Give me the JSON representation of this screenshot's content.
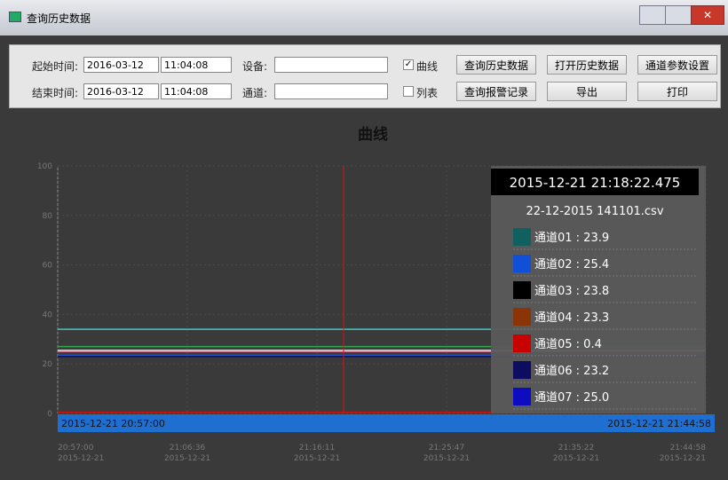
{
  "window": {
    "title": "查询历史数据"
  },
  "toolbar": {
    "start_label": "起始时间:",
    "start_date": "2016-03-12",
    "start_time": "11:04:08",
    "end_label": "结束时间:",
    "end_date": "2016-03-12",
    "end_time": "11:04:08",
    "device_label": "设备:",
    "channel_label": "通道:",
    "curve_label": "曲线",
    "curve_checked": true,
    "list_label": "列表",
    "list_checked": false,
    "buttons": [
      "查询历史数据",
      "打开历史数据",
      "通道参数设置",
      "查询报警记录",
      "导出",
      "打印"
    ]
  },
  "plot": {
    "title": "曲线",
    "ylim": [
      0,
      100
    ],
    "yticks": [
      0,
      20,
      40,
      60,
      80,
      100
    ],
    "x_start": "2015-12-21 20:57:00",
    "x_end": "2015-12-21 21:44:58",
    "xticks": [
      [
        "20:57:00",
        "2015-12-21"
      ],
      [
        "21:06:36",
        "2015-12-21"
      ],
      [
        "21:16:11",
        "2015-12-21"
      ],
      [
        "21:25:47",
        "2015-12-21"
      ],
      [
        "21:35:22",
        "2015-12-21"
      ],
      [
        "21:44:58",
        "2015-12-21"
      ]
    ],
    "series": [
      {
        "color": "#3fc8c0",
        "values": [
          34,
          34,
          34,
          34,
          34,
          34
        ]
      },
      {
        "color": "#2ea84a",
        "values": [
          27,
          27,
          27,
          27,
          27,
          27
        ]
      },
      {
        "color": "#e0e0e0",
        "values": [
          25.5,
          25.5,
          25.5,
          25.5,
          25.5,
          25.5
        ]
      },
      {
        "color": "#d07090",
        "values": [
          25,
          25,
          25,
          25,
          25,
          25
        ]
      },
      {
        "color": "#2a50d0",
        "values": [
          23.5,
          23.5,
          23.5,
          23.5,
          23.5,
          23.5
        ]
      },
      {
        "color": "#101040",
        "values": [
          23,
          23,
          23,
          23,
          23,
          23
        ]
      },
      {
        "color": "#d01010",
        "values": [
          0.5,
          0.5,
          0.5,
          0.5,
          0.5,
          0.5
        ]
      }
    ],
    "tooltip": {
      "time": "2015-12-21 21:18:22.475",
      "file": "22-12-2015 141101.csv",
      "items": [
        {
          "label": "通道01 : 23.9",
          "color": "#106060"
        },
        {
          "label": "通道02 : 25.4",
          "color": "#1050d8"
        },
        {
          "label": "通道03 : 23.8",
          "color": "#000000"
        },
        {
          "label": "通道04 : 23.3",
          "color": "#8a3408"
        },
        {
          "label": "通道05 : 0.4",
          "color": "#c80000"
        },
        {
          "label": "通道06 : 23.2",
          "color": "#0c0c60"
        },
        {
          "label": "通道07 : 25.0",
          "color": "#0c0cc0"
        }
      ]
    }
  }
}
